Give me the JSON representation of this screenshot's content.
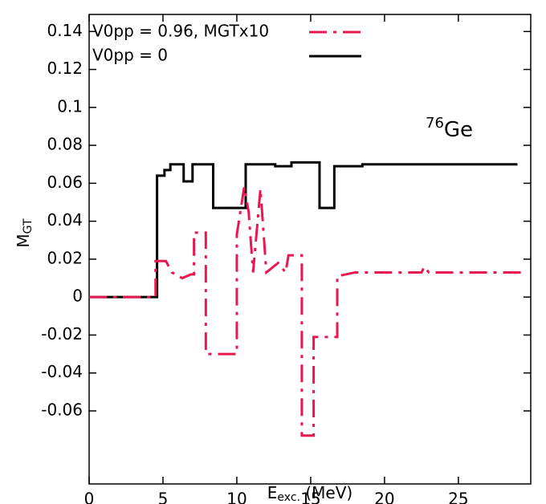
{
  "chart_data": {
    "type": "line",
    "xlabel": {
      "base": "E",
      "sub": "exc.",
      "rest": " (MeV)"
    },
    "ylabel": {
      "base": "M",
      "sub": "GT"
    },
    "annotation": {
      "sup": "76",
      "base": "Ge"
    },
    "xlim": [
      0,
      29.9
    ],
    "ylim": [
      -0.0985,
      0.149
    ],
    "xticks": [
      0,
      5,
      10,
      15,
      20,
      25
    ],
    "yticks": [
      0.14,
      0.12,
      0.1,
      0.08,
      0.06,
      0.04,
      0.02,
      0,
      -0.02,
      -0.04,
      -0.06
    ],
    "legend": "upper left",
    "series": [
      {
        "name": "V0pp = 0.96, MGTx10",
        "color": "#e8174f",
        "dash": "dash-dot",
        "x": [
          0,
          4.5,
          4.5,
          5.2,
          5.6,
          6.3,
          6.9,
          7.1,
          7.1,
          7.9,
          7.9,
          10.0,
          10.0,
          10.5,
          10.8,
          11.1,
          11.6,
          12.0,
          12.8,
          13.3,
          13.5,
          14.4,
          14.4,
          15.2,
          15.2,
          16.8,
          16.8,
          18,
          22.5,
          22.7,
          23,
          29.3
        ],
        "values": [
          0,
          0,
          0.019,
          0.019,
          0.013,
          0.01,
          0.012,
          0.012,
          0.034,
          0.034,
          -0.03,
          -0.03,
          0.033,
          0.058,
          0.045,
          0.013,
          0.057,
          0.013,
          0.018,
          0.013,
          0.022,
          0.022,
          -0.073,
          -0.073,
          -0.021,
          -0.021,
          0.011,
          0.013,
          0.013,
          0.016,
          0.013,
          0.013
        ]
      },
      {
        "name": "V0pp = 0",
        "color": "#000000",
        "dash": "solid",
        "x": [
          0,
          4.6,
          4.6,
          5.1,
          5.1,
          5.5,
          5.5,
          6.4,
          6.4,
          7.0,
          7.0,
          8.4,
          8.4,
          10.6,
          10.6,
          12.6,
          12.6,
          13.7,
          13.7,
          15.6,
          15.6,
          16.6,
          16.6,
          18.5,
          18.5,
          29.0
        ],
        "values": [
          0,
          0,
          0.064,
          0.064,
          0.067,
          0.067,
          0.07,
          0.07,
          0.061,
          0.061,
          0.07,
          0.07,
          0.047,
          0.047,
          0.07,
          0.07,
          0.069,
          0.069,
          0.071,
          0.071,
          0.047,
          0.047,
          0.069,
          0.069,
          0.07,
          0.07
        ]
      }
    ]
  }
}
